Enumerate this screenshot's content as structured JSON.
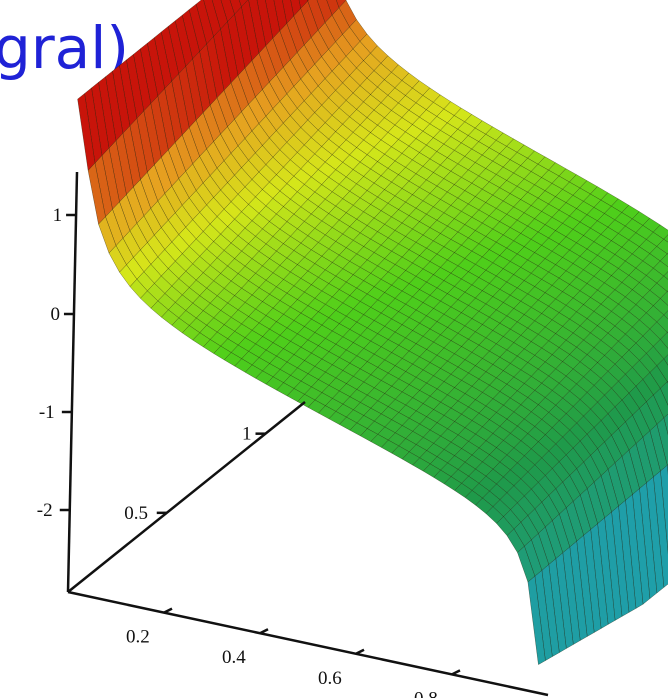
{
  "title_fragment": "gral)",
  "colors": {
    "title": "#1f22d6",
    "axis": "#111111",
    "surface_high": "#c8140a",
    "surface_mid_high": "#e6a020",
    "surface_mid": "#d6e61a",
    "surface_mid_low": "#4fcf1a",
    "surface_low": "#1f9a4a",
    "surface_lowest": "#1fa0c8"
  },
  "chart_data": {
    "type": "surface3d",
    "title": "",
    "z_axis": {
      "ticks": [
        1,
        0,
        -1,
        -2
      ],
      "tick_labels": [
        "1",
        "0",
        "-1",
        "-2"
      ]
    },
    "y_axis": {
      "ticks": [
        0.5,
        1
      ],
      "tick_labels": [
        "0.5",
        "1"
      ]
    },
    "x_axis": {
      "ticks": [
        0.2,
        0.4,
        0.6,
        0.8
      ],
      "tick_labels": [
        "0.2",
        "0.4",
        "0.6",
        "0.8"
      ]
    },
    "grid": false,
    "legend": "none"
  }
}
